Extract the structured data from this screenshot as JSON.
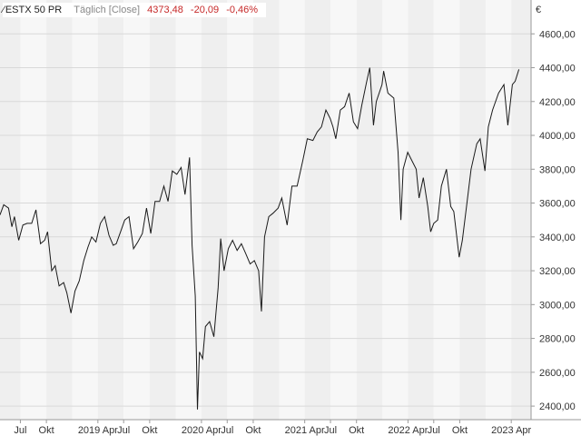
{
  "header": {
    "symbol": "ESTX 50 PR",
    "interval": "Täglich [Close]",
    "last": "4373,48",
    "change": "-20,09",
    "change_pct": "-0,46%"
  },
  "colors": {
    "band_light": "#f7f7f7",
    "band_dark": "#efefef",
    "grid": "#d9d9d9",
    "line": "#1a1a1a",
    "negative": "#c62828"
  },
  "chart_data": {
    "type": "line",
    "currency": "€",
    "y_ticks": [
      "4600,00",
      "4400,00",
      "4200,00",
      "4000,00",
      "3800,00",
      "3600,00",
      "3400,00",
      "3200,00",
      "3000,00",
      "2800,00",
      "2600,00",
      "2400,00"
    ],
    "x_ticks": [
      "Jul",
      "Okt",
      "2019 Apr",
      "Jul",
      "Okt",
      "2020 Apr",
      "Jul",
      "Okt",
      "2021 Apr",
      "Jul",
      "Okt",
      "2022 Apr",
      "Jul",
      "Okt",
      "2023 Apr"
    ],
    "ylim": [
      2320,
      4800
    ],
    "xlim": [
      "2018-04-20",
      "2023-06-10"
    ],
    "grid": true,
    "series": [
      {
        "values": [
          [
            "2018-04-20",
            3530
          ],
          [
            "2018-05-03",
            3590
          ],
          [
            "2018-05-20",
            3570
          ],
          [
            "2018-06-01",
            3460
          ],
          [
            "2018-06-10",
            3520
          ],
          [
            "2018-06-25",
            3380
          ],
          [
            "2018-07-10",
            3470
          ],
          [
            "2018-07-25",
            3480
          ],
          [
            "2018-08-10",
            3480
          ],
          [
            "2018-08-25",
            3560
          ],
          [
            "2018-09-10",
            3360
          ],
          [
            "2018-09-25",
            3380
          ],
          [
            "2018-10-05",
            3430
          ],
          [
            "2018-10-20",
            3200
          ],
          [
            "2018-11-01",
            3230
          ],
          [
            "2018-11-15",
            3110
          ],
          [
            "2018-12-01",
            3130
          ],
          [
            "2018-12-12",
            3070
          ],
          [
            "2018-12-27",
            2950
          ],
          [
            "2019-01-10",
            3080
          ],
          [
            "2019-01-25",
            3140
          ],
          [
            "2019-02-10",
            3260
          ],
          [
            "2019-02-25",
            3340
          ],
          [
            "2019-03-10",
            3400
          ],
          [
            "2019-03-25",
            3370
          ],
          [
            "2019-04-10",
            3480
          ],
          [
            "2019-04-25",
            3520
          ],
          [
            "2019-05-10",
            3410
          ],
          [
            "2019-05-25",
            3350
          ],
          [
            "2019-06-05",
            3360
          ],
          [
            "2019-06-20",
            3430
          ],
          [
            "2019-07-05",
            3500
          ],
          [
            "2019-07-20",
            3520
          ],
          [
            "2019-08-05",
            3330
          ],
          [
            "2019-08-20",
            3370
          ],
          [
            "2019-09-05",
            3420
          ],
          [
            "2019-09-20",
            3570
          ],
          [
            "2019-10-05",
            3420
          ],
          [
            "2019-10-20",
            3610
          ],
          [
            "2019-11-05",
            3610
          ],
          [
            "2019-11-20",
            3700
          ],
          [
            "2019-12-05",
            3610
          ],
          [
            "2019-12-20",
            3790
          ],
          [
            "2020-01-05",
            3770
          ],
          [
            "2020-01-20",
            3810
          ],
          [
            "2020-02-03",
            3650
          ],
          [
            "2020-02-19",
            3870
          ],
          [
            "2020-02-28",
            3350
          ],
          [
            "2020-03-10",
            3050
          ],
          [
            "2020-03-18",
            2380
          ],
          [
            "2020-03-25",
            2720
          ],
          [
            "2020-04-05",
            2680
          ],
          [
            "2020-04-15",
            2870
          ],
          [
            "2020-04-30",
            2900
          ],
          [
            "2020-05-15",
            2810
          ],
          [
            "2020-05-30",
            3100
          ],
          [
            "2020-06-08",
            3390
          ],
          [
            "2020-06-20",
            3200
          ],
          [
            "2020-07-05",
            3330
          ],
          [
            "2020-07-20",
            3380
          ],
          [
            "2020-08-05",
            3320
          ],
          [
            "2020-08-20",
            3360
          ],
          [
            "2020-09-05",
            3300
          ],
          [
            "2020-09-20",
            3240
          ],
          [
            "2020-10-05",
            3260
          ],
          [
            "2020-10-20",
            3200
          ],
          [
            "2020-10-30",
            2960
          ],
          [
            "2020-11-10",
            3400
          ],
          [
            "2020-11-25",
            3520
          ],
          [
            "2020-12-10",
            3540
          ],
          [
            "2020-12-28",
            3570
          ],
          [
            "2021-01-10",
            3630
          ],
          [
            "2021-01-29",
            3470
          ],
          [
            "2021-02-15",
            3700
          ],
          [
            "2021-03-05",
            3700
          ],
          [
            "2021-03-25",
            3850
          ],
          [
            "2021-04-10",
            3980
          ],
          [
            "2021-04-30",
            3970
          ],
          [
            "2021-05-15",
            4020
          ],
          [
            "2021-05-30",
            4050
          ],
          [
            "2021-06-15",
            4150
          ],
          [
            "2021-06-30",
            4100
          ],
          [
            "2021-07-10",
            4050
          ],
          [
            "2021-07-20",
            3980
          ],
          [
            "2021-08-05",
            4150
          ],
          [
            "2021-08-20",
            4170
          ],
          [
            "2021-09-05",
            4250
          ],
          [
            "2021-09-20",
            4080
          ],
          [
            "2021-10-05",
            4040
          ],
          [
            "2021-10-20",
            4180
          ],
          [
            "2021-11-05",
            4310
          ],
          [
            "2021-11-17",
            4400
          ],
          [
            "2021-11-30",
            4060
          ],
          [
            "2021-12-10",
            4200
          ],
          [
            "2021-12-30",
            4300
          ],
          [
            "2022-01-05",
            4380
          ],
          [
            "2022-01-20",
            4250
          ],
          [
            "2022-02-10",
            4220
          ],
          [
            "2022-02-25",
            3900
          ],
          [
            "2022-03-07",
            3500
          ],
          [
            "2022-03-15",
            3800
          ],
          [
            "2022-03-31",
            3900
          ],
          [
            "2022-04-15",
            3850
          ],
          [
            "2022-04-30",
            3800
          ],
          [
            "2022-05-10",
            3630
          ],
          [
            "2022-05-25",
            3750
          ],
          [
            "2022-06-10",
            3580
          ],
          [
            "2022-06-20",
            3430
          ],
          [
            "2022-07-01",
            3480
          ],
          [
            "2022-07-15",
            3500
          ],
          [
            "2022-07-28",
            3700
          ],
          [
            "2022-08-15",
            3800
          ],
          [
            "2022-08-30",
            3580
          ],
          [
            "2022-09-10",
            3550
          ],
          [
            "2022-09-29",
            3280
          ],
          [
            "2022-10-10",
            3380
          ],
          [
            "2022-10-25",
            3580
          ],
          [
            "2022-11-10",
            3800
          ],
          [
            "2022-11-30",
            3950
          ],
          [
            "2022-12-12",
            3980
          ],
          [
            "2022-12-29",
            3790
          ],
          [
            "2023-01-10",
            4050
          ],
          [
            "2023-01-25",
            4150
          ],
          [
            "2023-02-15",
            4250
          ],
          [
            "2023-03-06",
            4300
          ],
          [
            "2023-03-20",
            4060
          ],
          [
            "2023-04-05",
            4300
          ],
          [
            "2023-04-15",
            4320
          ],
          [
            "2023-04-28",
            4390
          ]
        ]
      }
    ]
  }
}
